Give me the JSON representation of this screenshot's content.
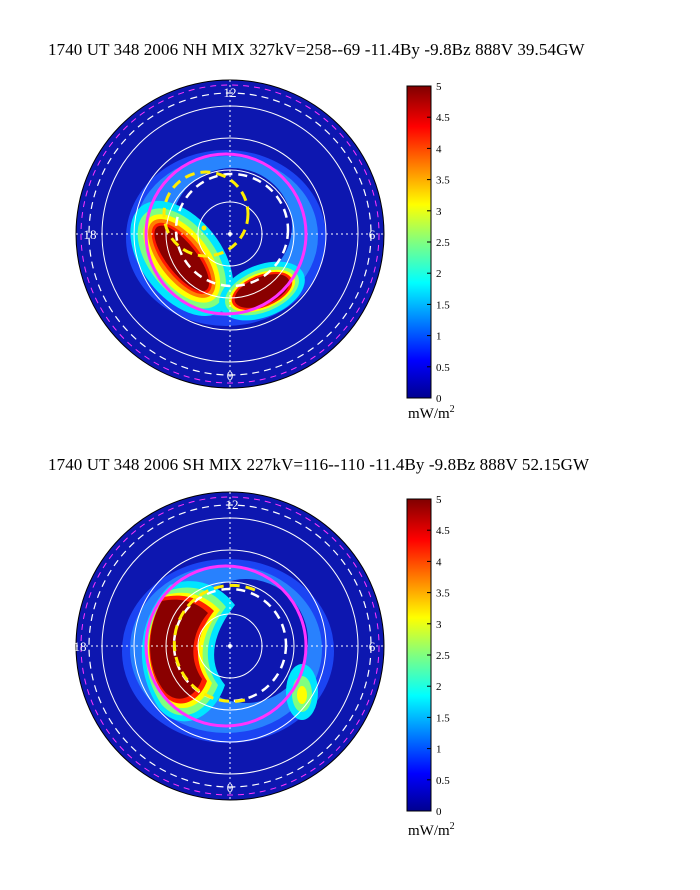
{
  "colors": {
    "dark_blue": "#0a1aa8",
    "pink_circle": "#ff33ff",
    "yellow_circle": "#ffee00",
    "grid": "#ffffff",
    "colormap": [
      "#00008f",
      "#0000ff",
      "#0080ff",
      "#00ffff",
      "#80ff80",
      "#ffff00",
      "#ff8000",
      "#ff0000",
      "#800000"
    ]
  },
  "chart_data": [
    {
      "type": "heatmap",
      "projection": "polar",
      "title": "1740 UT 348 2006 NH MIX 327kV=258--69 -11.4By -9.8Bz 888V 39.54GW",
      "mlt_labels": {
        "top": "12",
        "left": "18",
        "right": "6",
        "bottom": "0"
      },
      "colorbar": {
        "min": 0,
        "max": 5,
        "ticks": [
          "0",
          "0.5",
          "1",
          "1.5",
          "2",
          "2.5",
          "3",
          "3.5",
          "4",
          "4.5",
          "5"
        ],
        "unit": "mW/m",
        "unit_sup": "2"
      },
      "regions_mW_m2": [
        {
          "mlt": "dusk (~19-23)",
          "peak": 5
        },
        {
          "mlt": "post-midnight (~1-4)",
          "peak": 5
        }
      ]
    },
    {
      "type": "heatmap",
      "projection": "polar",
      "title": "1740 UT 348 2006 SH MIX 227kV=116--110 -11.4By -9.8Bz 888V 52.15GW",
      "mlt_labels": {
        "top": "12",
        "left": "18",
        "right": "6",
        "bottom": "0"
      },
      "colorbar": {
        "min": 0,
        "max": 5,
        "ticks": [
          "0",
          "0.5",
          "1",
          "1.5",
          "2",
          "2.5",
          "3",
          "3.5",
          "4",
          "4.5",
          "5"
        ],
        "unit": "mW/m",
        "unit_sup": "2"
      },
      "regions_mW_m2": [
        {
          "mlt": "dusk (~15-21)",
          "peak": 5
        },
        {
          "mlt": "dawn (~3-5)",
          "peak": 2.5
        }
      ]
    }
  ]
}
